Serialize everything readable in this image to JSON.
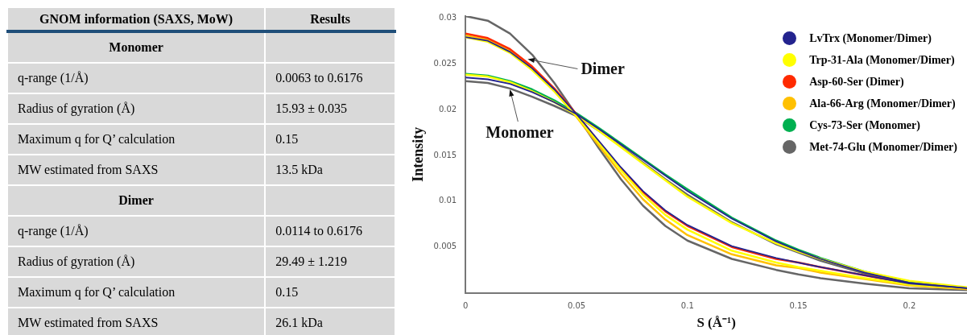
{
  "chart_data": [
    {
      "type": "other",
      "categories": [
        "GNOM information (SAXS, MoW)",
        "Results"
      ],
      "y_categories": [
        "Monomer",
        "q-range (1/Å)",
        "Radius of gyration (Å)",
        "Maximum q for Q’ calculation",
        "MW estimated from SAXS",
        "Dimer",
        "q-range (1/Å)",
        "Radius of gyration (Å)",
        "Maximum q for Q’ calculation",
        "MW estimated from SAXS"
      ],
      "cell_labels": [
        [
          null
        ],
        [
          "0.0063 to 0.6176"
        ],
        [
          "15.93 ± 0.035"
        ],
        [
          "0.15"
        ],
        [
          "13.5 kDa"
        ],
        [
          null
        ],
        [
          "0.0114 to 0.6176"
        ],
        [
          "29.49 ± 1.219"
        ],
        [
          "0.15"
        ],
        [
          "26.1 kDa"
        ]
      ]
    },
    {
      "type": "line",
      "xlabel": "S (Å⁻¹)",
      "ylabel": "Intensity",
      "x": [
        0,
        0.01,
        0.02,
        0.03,
        0.04,
        0.05,
        0.06,
        0.07,
        0.08,
        0.09,
        0.1,
        0.12,
        0.14,
        0.15,
        0.16,
        0.18,
        0.2,
        0.226
      ],
      "xlim": [
        0,
        0.226
      ],
      "xticks": [
        0,
        0.05,
        0.1,
        0.15,
        0.2
      ],
      "ylim": [
        0,
        0.0302
      ],
      "yticks": [
        0.005,
        0.01,
        0.015,
        0.02,
        0.025,
        0.03
      ],
      "grid": false,
      "legend": "top right",
      "marker": "none",
      "line_style": "solid",
      "series": [
        {
          "name": "LvTrx (Monomer/Dimer)",
          "color": "#23238e",
          "values": [
            0.0235,
            0.0233,
            0.0228,
            0.0219,
            0.0208,
            0.0195,
            0.0179,
            0.0162,
            0.0145,
            0.0128,
            0.0111,
            0.0081,
            0.0056,
            0.0046,
            0.0037,
            0.0022,
            0.0011,
            0.0005
          ]
        },
        {
          "color": "#23238e",
          "values": [
            0.0279,
            0.0275,
            0.0263,
            0.0245,
            0.0222,
            0.0195,
            0.0166,
            0.0137,
            0.0111,
            0.009,
            0.0074,
            0.0051,
            0.0038,
            0.0033,
            0.0028,
            0.0019,
            0.001,
            0.0005
          ]
        },
        {
          "name": "Trp-31-Ala (Monomer/Dimer)",
          "color": "#ffff00",
          "values": [
            0.0238,
            0.0236,
            0.023,
            0.022,
            0.0208,
            0.0194,
            0.0177,
            0.0159,
            0.0141,
            0.0123,
            0.0105,
            0.0076,
            0.0054,
            0.0045,
            0.0037,
            0.0023,
            0.0013,
            0.0006
          ]
        },
        {
          "color": "#ffff00",
          "values": [
            0.0279,
            0.0274,
            0.0262,
            0.0243,
            0.022,
            0.0193,
            0.0164,
            0.0134,
            0.0107,
            0.0085,
            0.0069,
            0.0046,
            0.0033,
            0.0028,
            0.0024,
            0.0016,
            0.0009,
            0.0005
          ]
        },
        {
          "name": "Asp-60-Ser (Dimer)",
          "color": "#ff2a00",
          "values": [
            0.0283,
            0.0278,
            0.0266,
            0.0247,
            0.0223,
            0.0195,
            0.0165,
            0.0135,
            0.011,
            0.0089,
            0.0073,
            0.005,
            0.0037,
            0.0033,
            0.0028,
            0.0019,
            0.001,
            0.0005
          ]
        },
        {
          "name": "Ala-66-Arg (Monomer/Dimer)",
          "color": "#ffc000",
          "values": [
            0.0281,
            0.0276,
            0.0264,
            0.0245,
            0.022,
            0.0192,
            0.0161,
            0.013,
            0.0102,
            0.008,
            0.0063,
            0.0042,
            0.003,
            0.0027,
            0.0022,
            0.0015,
            0.0008,
            0.0004
          ]
        },
        {
          "name": "Cys-73-Ser (Monomer)",
          "color": "#00b050",
          "values": [
            0.0239,
            0.0237,
            0.0231,
            0.0222,
            0.021,
            0.0196,
            0.018,
            0.0163,
            0.0146,
            0.0129,
            0.0113,
            0.0082,
            0.0057,
            0.0047,
            0.0038,
            0.0023,
            0.0012,
            0.0005
          ]
        },
        {
          "name": "Met-74-Glu (Monomer/Dimer)",
          "color": "#666666",
          "values": [
            0.0231,
            0.0229,
            0.0223,
            0.0214,
            0.0204,
            0.0193,
            0.0177,
            0.016,
            0.0142,
            0.0124,
            0.0107,
            0.0077,
            0.0053,
            0.0044,
            0.0035,
            0.0021,
            0.0011,
            0.0005
          ]
        },
        {
          "color": "#666666",
          "values": [
            0.0302,
            0.0297,
            0.0283,
            0.026,
            0.0229,
            0.0194,
            0.0158,
            0.0124,
            0.0095,
            0.0073,
            0.0057,
            0.0037,
            0.0025,
            0.002,
            0.0016,
            0.001,
            0.0005,
            0.0003
          ]
        }
      ],
      "annotations": [
        {
          "text": "Dimer",
          "x": 0.028,
          "y": 0.0255
        },
        {
          "text": "Monomer",
          "x": 0.02,
          "y": 0.0222
        }
      ]
    }
  ]
}
